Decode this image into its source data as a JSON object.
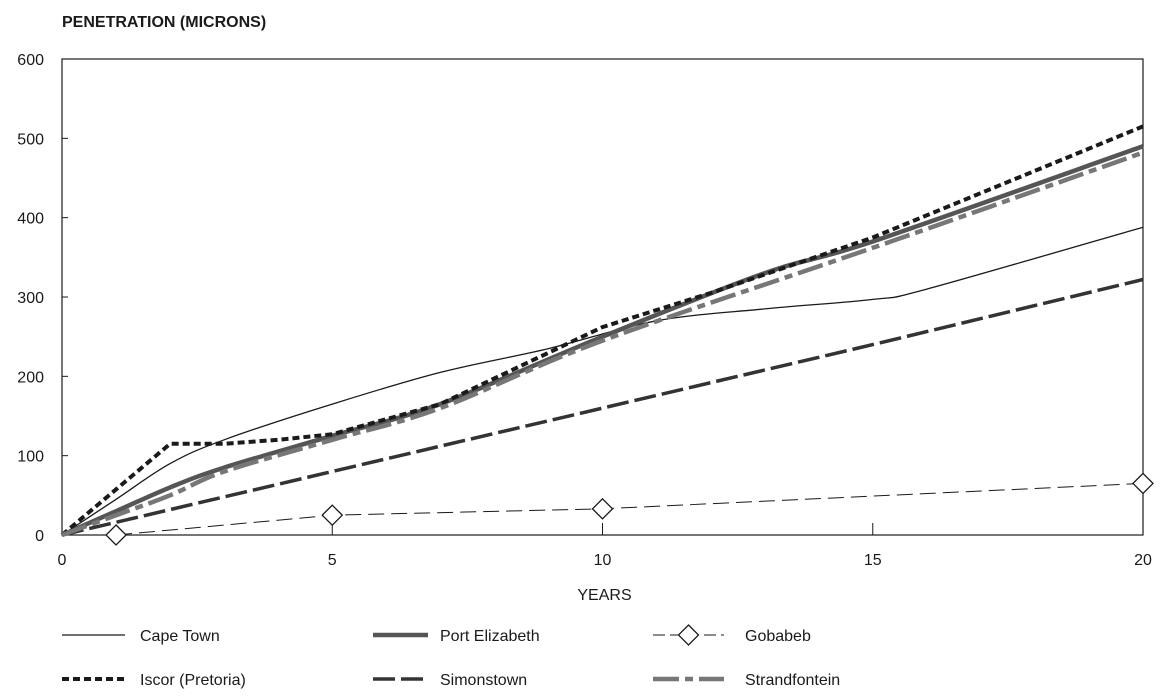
{
  "chart_data": {
    "type": "line",
    "ylabel": "PENETRATION (MICRONS)",
    "xlabel": "YEARS",
    "xlim": [
      0,
      20
    ],
    "ylim": [
      0,
      600
    ],
    "xticks": [
      0,
      5,
      10,
      15,
      20
    ],
    "yticks": [
      0,
      100,
      200,
      300,
      400,
      500,
      600
    ],
    "grid": false,
    "legend_position": "bottom",
    "series": [
      {
        "name": "Cape Town",
        "style": "thin-solid",
        "color": "#1a1a1a",
        "x": [
          0,
          1,
          2,
          3,
          5,
          7,
          9,
          11,
          13,
          15,
          16,
          20
        ],
        "y": [
          0,
          45,
          90,
          120,
          165,
          205,
          235,
          270,
          285,
          297,
          310,
          388
        ]
      },
      {
        "name": "Port Elizabeth",
        "style": "thick-solid",
        "color": "#555555",
        "x": [
          0,
          1,
          2,
          3,
          5,
          7,
          10,
          13,
          15,
          20
        ],
        "y": [
          0,
          30,
          60,
          85,
          125,
          165,
          250,
          330,
          370,
          490
        ]
      },
      {
        "name": "Gobabeb",
        "style": "long-dash-diamond",
        "color": "#1a1a1a",
        "x": [
          1,
          5,
          10,
          20
        ],
        "y": [
          0,
          25,
          33,
          65
        ]
      },
      {
        "name": "Iscor (Pretoria)",
        "style": "short-dash",
        "color": "#1a1a1a",
        "x": [
          0,
          2,
          3,
          4,
          5,
          7,
          10,
          12,
          15,
          20
        ],
        "y": [
          0,
          115,
          115,
          120,
          127,
          165,
          262,
          305,
          375,
          515
        ]
      },
      {
        "name": "Simonstown",
        "style": "dash",
        "color": "#333333",
        "x": [
          0,
          5,
          10,
          15,
          20
        ],
        "y": [
          0,
          80,
          160,
          240,
          322
        ]
      },
      {
        "name": "Strandfontein",
        "style": "long-short-dash",
        "color": "#777777",
        "x": [
          0,
          1,
          2,
          3,
          5,
          7,
          10,
          15,
          20
        ],
        "y": [
          0,
          25,
          50,
          80,
          120,
          160,
          245,
          362,
          482
        ]
      }
    ]
  }
}
